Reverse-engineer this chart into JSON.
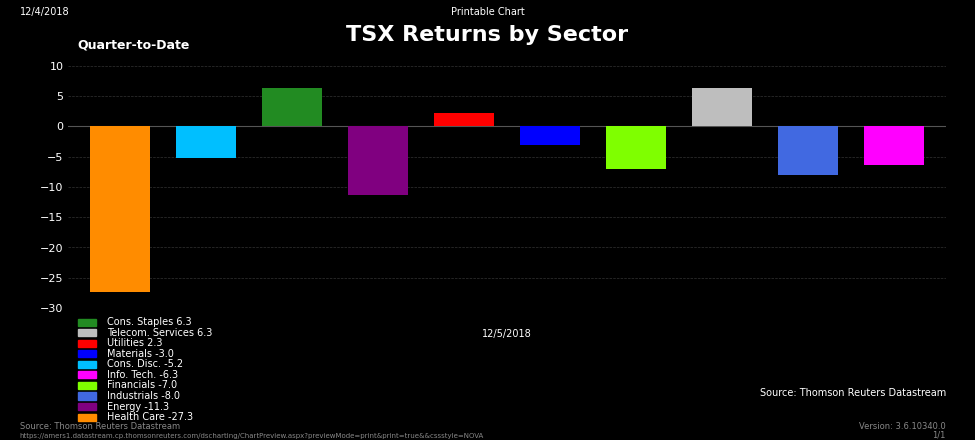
{
  "title": "TSX Returns by Sector",
  "subtitle": "Quarter-to-Date",
  "top_left_text": "12/4/2018",
  "top_center_text": "Printable Chart",
  "bottom_center_text": "12/5/2018",
  "bottom_left_text": "Source: Thomson Reuters Datastream",
  "bottom_right_text1": "Source: Thomson Reuters Datastream",
  "bottom_right_text2": "Version: 3.6.10340.0",
  "url_text": "https://amers1.datastream.cp.thomsonreuters.com/dscharting/ChartPreview.aspx?previewMode=print&print=true&&cssstyle=NOVA",
  "page_text": "1/1",
  "bars": [
    {
      "label": "Health Care -27.3",
      "value": -27.3,
      "color": "#FF8C00",
      "x": 0
    },
    {
      "label": "Cons. Disc. -5.2",
      "value": -5.2,
      "color": "#00BFFF",
      "x": 1
    },
    {
      "label": "Cons. Staples 6.3",
      "value": 6.3,
      "color": "#228B22",
      "x": 2
    },
    {
      "label": "Energy -11.3",
      "value": -11.3,
      "color": "#800080",
      "x": 3
    },
    {
      "label": "Utilities 2.3",
      "value": 2.3,
      "color": "#FF0000",
      "x": 4
    },
    {
      "label": "Materials -3.0",
      "value": -3.0,
      "color": "#0000FF",
      "x": 5
    },
    {
      "label": "Financials -7.0",
      "value": -7.0,
      "color": "#7FFF00",
      "x": 6
    },
    {
      "label": "Telecom. Services 6.3",
      "value": 6.3,
      "color": "#BEBEBE",
      "x": 7
    },
    {
      "label": "Industrials -8.0",
      "value": -8.0,
      "color": "#4169E1",
      "x": 8
    },
    {
      "label": "Info. Tech. -6.3",
      "value": -6.3,
      "color": "#FF00FF",
      "x": 9
    }
  ],
  "legend_order": [
    {
      "label": "Cons. Staples 6.3",
      "color": "#228B22"
    },
    {
      "label": "Telecom. Services 6.3",
      "color": "#BEBEBE"
    },
    {
      "label": "Utilities 2.3",
      "color": "#FF0000"
    },
    {
      "label": "Materials -3.0",
      "color": "#0000FF"
    },
    {
      "label": "Cons. Disc. -5.2",
      "color": "#00BFFF"
    },
    {
      "label": "Info. Tech. -6.3",
      "color": "#FF00FF"
    },
    {
      "label": "Financials -7.0",
      "color": "#7FFF00"
    },
    {
      "label": "Industrials -8.0",
      "color": "#4169E1"
    },
    {
      "label": "Energy -11.3",
      "color": "#800080"
    },
    {
      "label": "Health Care -27.3",
      "color": "#FF8C00"
    }
  ],
  "ylim": [
    -30,
    10
  ],
  "yticks": [
    -30,
    -25,
    -20,
    -15,
    -10,
    -5,
    0,
    5,
    10
  ],
  "background_color": "#000000",
  "plot_bg_color": "#111111",
  "text_color": "#FFFFFF",
  "grid_color": "#333333",
  "bar_width": 0.7
}
